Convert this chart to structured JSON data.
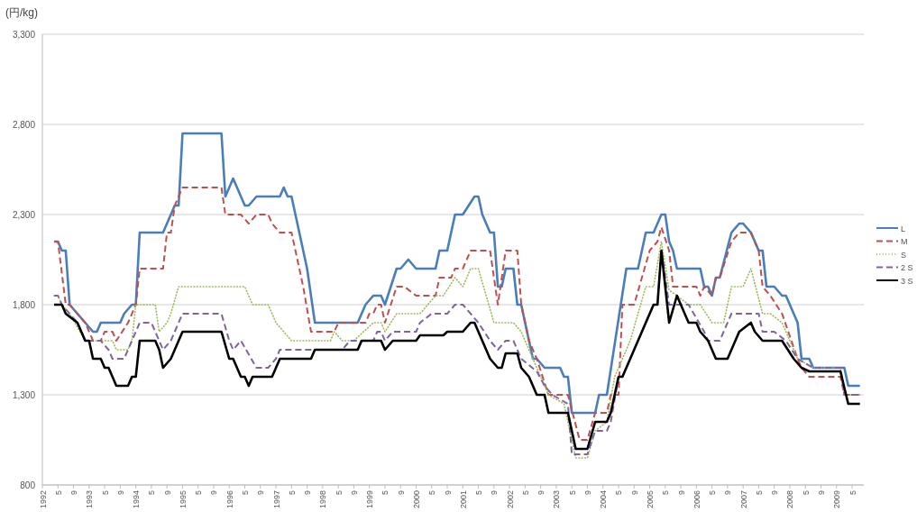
{
  "chart_data": {
    "type": "line",
    "ylabel": "(円/kg)",
    "grid": "y",
    "legend": "right",
    "marker": "none",
    "xlim": [
      "1992-01",
      "2009-08"
    ],
    "ylim": [
      800,
      3300
    ],
    "yticks": [
      {
        "value": 800,
        "label": "800"
      },
      {
        "value": 1300,
        "label": "1,300"
      },
      {
        "value": 1800,
        "label": "1,800"
      },
      {
        "value": 2300,
        "label": "2,300"
      },
      {
        "value": 2800,
        "label": "2,800"
      },
      {
        "value": 3300,
        "label": "3,300"
      }
    ],
    "xticks": [
      {
        "value": "1992-01",
        "label": "1992"
      },
      {
        "value": "1992-05",
        "label": "5"
      },
      {
        "value": "1992-09",
        "label": "9"
      },
      {
        "value": "1993-01",
        "label": "1993"
      },
      {
        "value": "1993-05",
        "label": "5"
      },
      {
        "value": "1993-09",
        "label": "9"
      },
      {
        "value": "1994-01",
        "label": "1994"
      },
      {
        "value": "1994-05",
        "label": "5"
      },
      {
        "value": "1994-09",
        "label": "9"
      },
      {
        "value": "1995-01",
        "label": "1995"
      },
      {
        "value": "1995-05",
        "label": "5"
      },
      {
        "value": "1995-09",
        "label": "9"
      },
      {
        "value": "1996-01",
        "label": "1996"
      },
      {
        "value": "1996-05",
        "label": "5"
      },
      {
        "value": "1996-09",
        "label": "9"
      },
      {
        "value": "1997-01",
        "label": "1997"
      },
      {
        "value": "1997-05",
        "label": "5"
      },
      {
        "value": "1997-09",
        "label": "9"
      },
      {
        "value": "1998-01",
        "label": "1998"
      },
      {
        "value": "1998-05",
        "label": "5"
      },
      {
        "value": "1998-09",
        "label": "9"
      },
      {
        "value": "1999-01",
        "label": "1999"
      },
      {
        "value": "1999-05",
        "label": "5"
      },
      {
        "value": "1999-09",
        "label": "9"
      },
      {
        "value": "2000-01",
        "label": "2000"
      },
      {
        "value": "2000-05",
        "label": "5"
      },
      {
        "value": "2000-09",
        "label": "9"
      },
      {
        "value": "2001-01",
        "label": "2001"
      },
      {
        "value": "2001-05",
        "label": "5"
      },
      {
        "value": "2001-09",
        "label": "9"
      },
      {
        "value": "2002-01",
        "label": "2002"
      },
      {
        "value": "2002-05",
        "label": "5"
      },
      {
        "value": "2002-09",
        "label": "9"
      },
      {
        "value": "2003-01",
        "label": "2003"
      },
      {
        "value": "2003-05",
        "label": "5"
      },
      {
        "value": "2003-09",
        "label": "9"
      },
      {
        "value": "2004-01",
        "label": "2004"
      },
      {
        "value": "2004-05",
        "label": "5"
      },
      {
        "value": "2004-09",
        "label": "9"
      },
      {
        "value": "2005-01",
        "label": "2005"
      },
      {
        "value": "2005-05",
        "label": "5"
      },
      {
        "value": "2005-09",
        "label": "9"
      },
      {
        "value": "2006-01",
        "label": "2006"
      },
      {
        "value": "2006-05",
        "label": "5"
      },
      {
        "value": "2006-09",
        "label": "9"
      },
      {
        "value": "2007-01",
        "label": "2007"
      },
      {
        "value": "2007-05",
        "label": "5"
      },
      {
        "value": "2007-09",
        "label": "9"
      },
      {
        "value": "2008-01",
        "label": "2008"
      },
      {
        "value": "2008-05",
        "label": "5"
      },
      {
        "value": "2008-09",
        "label": "9"
      },
      {
        "value": "2009-01",
        "label": "2009"
      },
      {
        "value": "2009-05",
        "label": "5"
      }
    ],
    "series": [
      {
        "name": "L",
        "color": "#4a7ebb",
        "line_style": "solid",
        "x": [
          "1992-04",
          "1992-05",
          "1992-06",
          "1992-07",
          "1992-08",
          "1992-10",
          "1992-12",
          "1993-02",
          "1993-03",
          "1993-04",
          "1993-09",
          "1993-10",
          "1993-12",
          "1994-01",
          "1994-02",
          "1994-08",
          "1994-10",
          "1994-11",
          "1994-12",
          "1995-01",
          "1995-11",
          "1995-12",
          "1996-02",
          "1996-05",
          "1996-06",
          "1996-08",
          "1997-02",
          "1997-03",
          "1997-04",
          "1997-05",
          "1997-09",
          "1997-11",
          "1998-10",
          "1998-12",
          "1999-02",
          "1999-04",
          "1999-05",
          "1999-08",
          "1999-09",
          "1999-11",
          "2000-01",
          "2000-06",
          "2000-07",
          "2000-09",
          "2000-11",
          "2001-01",
          "2001-04",
          "2001-05",
          "2001-06",
          "2001-07",
          "2001-08",
          "2001-09",
          "2001-10",
          "2001-11",
          "2001-12",
          "2002-02",
          "2002-03",
          "2002-04",
          "2002-06",
          "2002-07",
          "2002-08",
          "2002-10",
          "2003-02",
          "2003-03",
          "2003-04",
          "2003-05",
          "2003-11",
          "2003-12",
          "2004-02",
          "2004-07",
          "2004-10",
          "2004-12",
          "2005-02",
          "2005-04",
          "2005-05",
          "2005-06",
          "2005-07",
          "2005-08",
          "2006-02",
          "2006-03",
          "2006-04",
          "2006-05",
          "2006-06",
          "2006-07",
          "2006-10",
          "2006-12",
          "2007-01",
          "2007-03",
          "2007-05",
          "2007-06",
          "2007-07",
          "2007-09",
          "2007-11",
          "2007-12",
          "2008-02",
          "2008-03",
          "2008-04",
          "2008-06",
          "2008-07",
          "2009-03",
          "2009-04",
          "2009-07"
        ],
        "values": [
          2150,
          2150,
          2100,
          2100,
          1800,
          1750,
          1700,
          1650,
          1650,
          1700,
          1700,
          1750,
          1800,
          1800,
          2200,
          2200,
          2300,
          2350,
          2350,
          2750,
          2750,
          2400,
          2500,
          2350,
          2350,
          2400,
          2400,
          2450,
          2400,
          2400,
          2000,
          1700,
          1700,
          1800,
          1850,
          1850,
          1800,
          2000,
          2000,
          2050,
          2000,
          2000,
          2100,
          2100,
          2300,
          2300,
          2400,
          2400,
          2300,
          2250,
          2200,
          2200,
          1900,
          1900,
          2000,
          2000,
          1800,
          1800,
          1600,
          1500,
          1500,
          1450,
          1450,
          1400,
          1400,
          1200,
          1200,
          1300,
          1300,
          2000,
          2000,
          2200,
          2200,
          2300,
          2300,
          2150,
          2100,
          2000,
          2000,
          1900,
          1900,
          1850,
          1950,
          1950,
          2200,
          2250,
          2250,
          2200,
          2100,
          2100,
          1900,
          1900,
          1850,
          1850,
          1750,
          1700,
          1500,
          1500,
          1450,
          1450,
          1350,
          1350
        ]
      },
      {
        "name": "M",
        "color": "#c0504d",
        "line_style": "dashed",
        "x": [
          "1992-04",
          "1992-05",
          "1992-07",
          "1992-08",
          "1992-10",
          "1992-12",
          "1993-02",
          "1993-04",
          "1993-05",
          "1993-07",
          "1993-08",
          "1993-11",
          "1994-01",
          "1994-02",
          "1994-08",
          "1994-09",
          "1994-10",
          "1994-11",
          "1995-01",
          "1995-11",
          "1995-12",
          "1996-04",
          "1996-06",
          "1996-08",
          "1996-11",
          "1996-12",
          "1997-02",
          "1997-05",
          "1997-08",
          "1997-10",
          "1998-04",
          "1998-05",
          "1998-12",
          "1999-01",
          "1999-02",
          "1999-03",
          "1999-04",
          "1999-05",
          "1999-08",
          "1999-10",
          "2000-01",
          "2000-06",
          "2000-07",
          "2000-10",
          "2000-11",
          "2001-01",
          "2001-02",
          "2001-03",
          "2001-08",
          "2001-10",
          "2001-12",
          "2002-03",
          "2002-04",
          "2002-06",
          "2002-08",
          "2002-11",
          "2003-04",
          "2003-07",
          "2003-09",
          "2003-11",
          "2004-02",
          "2004-03",
          "2004-05",
          "2004-06",
          "2004-09",
          "2005-01",
          "2005-03",
          "2005-04",
          "2005-06",
          "2005-07",
          "2006-01",
          "2006-02",
          "2006-03",
          "2006-05",
          "2006-06",
          "2006-07",
          "2006-10",
          "2006-12",
          "2007-03",
          "2007-05",
          "2007-06",
          "2007-08",
          "2007-11",
          "2008-03",
          "2008-04",
          "2008-06",
          "2009-02",
          "2009-03",
          "2009-07"
        ],
        "values": [
          2150,
          2150,
          1800,
          1800,
          1750,
          1700,
          1600,
          1600,
          1650,
          1650,
          1600,
          1700,
          1800,
          2000,
          2000,
          2200,
          2200,
          2350,
          2450,
          2450,
          2300,
          2300,
          2250,
          2300,
          2300,
          2250,
          2200,
          2200,
          1900,
          1650,
          1650,
          1700,
          1700,
          1750,
          1750,
          1800,
          1800,
          1700,
          1900,
          1900,
          1850,
          1850,
          1950,
          1950,
          2000,
          2000,
          2050,
          2100,
          2100,
          1800,
          2100,
          2100,
          1800,
          1600,
          1500,
          1300,
          1300,
          1050,
          1050,
          1200,
          1200,
          1300,
          1300,
          1800,
          1800,
          2100,
          2150,
          2230,
          2100,
          1900,
          1900,
          1850,
          1900,
          1850,
          1950,
          1950,
          2150,
          2200,
          2200,
          2100,
          1900,
          1850,
          1750,
          1500,
          1450,
          1400,
          1400,
          1300,
          1300
        ]
      },
      {
        "name": "S",
        "color": "#9bbb59",
        "line_style": "dotted",
        "x": [
          "1992-04",
          "1992-05",
          "1992-06",
          "1992-08",
          "1992-12",
          "1993-07",
          "1993-08",
          "1993-11",
          "1993-12",
          "1994-01",
          "1994-06",
          "1994-07",
          "1994-09",
          "1994-10",
          "1994-12",
          "1996-05",
          "1996-07",
          "1996-11",
          "1997-01",
          "1997-03",
          "1997-05",
          "1998-03",
          "1998-04",
          "1998-06",
          "1998-09",
          "1999-02",
          "1999-04",
          "1999-05",
          "1999-08",
          "2000-02",
          "2000-06",
          "2000-08",
          "2000-11",
          "2001-01",
          "2001-03",
          "2001-05",
          "2001-07",
          "2001-09",
          "2002-02",
          "2002-04",
          "2002-08",
          "2002-09",
          "2002-11",
          "2003-03",
          "2003-06",
          "2003-09",
          "2003-11",
          "2004-02",
          "2004-04",
          "2004-08",
          "2004-12",
          "2005-02",
          "2005-04",
          "2005-06",
          "2005-08",
          "2005-11",
          "2006-02",
          "2006-05",
          "2006-08",
          "2006-10",
          "2007-01",
          "2007-03",
          "2007-06",
          "2007-08",
          "2007-11",
          "2008-03",
          "2008-07",
          "2009-02",
          "2009-03",
          "2009-07"
        ],
        "values": [
          1850,
          1850,
          1800,
          1750,
          1600,
          1600,
          1550,
          1550,
          1600,
          1800,
          1800,
          1650,
          1700,
          1750,
          1900,
          1900,
          1800,
          1800,
          1700,
          1650,
          1600,
          1600,
          1650,
          1600,
          1600,
          1700,
          1700,
          1650,
          1750,
          1750,
          1850,
          1850,
          1950,
          1900,
          2000,
          2000,
          1850,
          1700,
          1700,
          1650,
          1450,
          1400,
          1300,
          1250,
          950,
          950,
          1100,
          1150,
          1400,
          1600,
          1900,
          1900,
          2150,
          1880,
          1850,
          1800,
          1800,
          1700,
          1700,
          1900,
          1900,
          2000,
          1750,
          1750,
          1700,
          1500,
          1450,
          1450,
          1300,
          1300
        ]
      },
      {
        "name": "2 S",
        "color": "#8064a2",
        "line_style": "dashed",
        "x": [
          "1992-04",
          "1992-05",
          "1992-06",
          "1992-08",
          "1992-10",
          "1992-12",
          "1993-04",
          "1993-06",
          "1993-07",
          "1993-10",
          "1993-12",
          "1994-02",
          "1994-05",
          "1994-06",
          "1994-08",
          "1994-10",
          "1994-11",
          "1995-01",
          "1995-11",
          "1996-01",
          "1996-02",
          "1996-04",
          "1996-08",
          "1996-11",
          "1997-01",
          "1997-02",
          "1998-06",
          "1998-08",
          "1999-02",
          "1999-03",
          "1999-04",
          "1999-05",
          "1999-07",
          "2000-01",
          "2000-02",
          "2000-05",
          "2000-09",
          "2000-11",
          "2001-01",
          "2001-03",
          "2001-05",
          "2001-08",
          "2001-10",
          "2001-12",
          "2002-02",
          "2002-03",
          "2002-04",
          "2002-08",
          "2002-10",
          "2002-12",
          "2003-04",
          "2003-05",
          "2003-09",
          "2003-11",
          "2004-02",
          "2004-03",
          "2004-05",
          "2004-06",
          "2004-10",
          "2004-12",
          "2005-02",
          "2005-03",
          "2005-04",
          "2005-06",
          "2005-11",
          "2006-03",
          "2006-04",
          "2006-07",
          "2006-08",
          "2006-10",
          "2007-05",
          "2007-06",
          "2007-09",
          "2007-12",
          "2008-03",
          "2008-07",
          "2009-02",
          "2009-03",
          "2009-07"
        ],
        "values": [
          1850,
          1850,
          1800,
          1750,
          1700,
          1600,
          1600,
          1550,
          1500,
          1500,
          1600,
          1700,
          1700,
          1650,
          1550,
          1600,
          1650,
          1750,
          1750,
          1600,
          1550,
          1600,
          1450,
          1450,
          1500,
          1550,
          1550,
          1600,
          1600,
          1650,
          1650,
          1600,
          1650,
          1650,
          1700,
          1750,
          1750,
          1800,
          1800,
          1750,
          1700,
          1600,
          1550,
          1600,
          1600,
          1550,
          1500,
          1430,
          1350,
          1300,
          1250,
          970,
          970,
          1100,
          1100,
          1150,
          1400,
          1400,
          1600,
          1700,
          1800,
          1800,
          2100,
          1800,
          1800,
          1650,
          1600,
          1600,
          1650,
          1750,
          1750,
          1650,
          1650,
          1600,
          1500,
          1450,
          1450,
          1300,
          1300
        ]
      },
      {
        "name": "3 S",
        "color": "#000000",
        "line_style": "solid",
        "x": [
          "1992-04",
          "1992-06",
          "1992-07",
          "1992-10",
          "1992-12",
          "1993-01",
          "1993-02",
          "1993-04",
          "1993-05",
          "1993-06",
          "1993-08",
          "1993-11",
          "1993-12",
          "1994-01",
          "1994-02",
          "1994-06",
          "1994-07",
          "1994-08",
          "1994-10",
          "1994-11",
          "1995-01",
          "1995-11",
          "1996-01",
          "1996-02",
          "1996-04",
          "1996-05",
          "1996-06",
          "1996-07",
          "1996-12",
          "1997-01",
          "1997-02",
          "1997-10",
          "1997-11",
          "1998-10",
          "1998-11",
          "1999-04",
          "1999-05",
          "1999-07",
          "2000-01",
          "2000-02",
          "2000-08",
          "2000-09",
          "2001-01",
          "2001-03",
          "2001-04",
          "2001-06",
          "2001-08",
          "2001-10",
          "2001-11",
          "2001-12",
          "2002-03",
          "2002-04",
          "2002-06",
          "2002-07",
          "2002-08",
          "2002-10",
          "2002-11",
          "2003-04",
          "2003-06",
          "2003-09",
          "2003-11",
          "2004-02",
          "2004-03",
          "2004-05",
          "2004-06",
          "2004-10",
          "2004-12",
          "2005-02",
          "2005-03",
          "2005-04",
          "2005-06",
          "2005-08",
          "2005-11",
          "2006-01",
          "2006-02",
          "2006-04",
          "2006-06",
          "2006-09",
          "2006-10",
          "2006-12",
          "2007-03",
          "2007-04",
          "2007-06",
          "2007-11",
          "2008-02",
          "2008-04",
          "2008-06",
          "2009-02",
          "2009-04",
          "2009-07"
        ],
        "values": [
          1800,
          1800,
          1750,
          1700,
          1600,
          1600,
          1500,
          1500,
          1450,
          1450,
          1350,
          1350,
          1400,
          1400,
          1600,
          1600,
          1550,
          1450,
          1500,
          1550,
          1650,
          1650,
          1500,
          1500,
          1400,
          1400,
          1350,
          1400,
          1400,
          1450,
          1500,
          1500,
          1550,
          1550,
          1600,
          1600,
          1550,
          1600,
          1600,
          1630,
          1630,
          1650,
          1650,
          1700,
          1700,
          1600,
          1500,
          1450,
          1450,
          1530,
          1530,
          1450,
          1400,
          1350,
          1300,
          1300,
          1200,
          1200,
          1000,
          1000,
          1150,
          1150,
          1200,
          1400,
          1400,
          1600,
          1700,
          1800,
          1800,
          2100,
          1700,
          1850,
          1700,
          1700,
          1650,
          1600,
          1500,
          1500,
          1550,
          1650,
          1700,
          1650,
          1600,
          1600,
          1500,
          1450,
          1430,
          1430,
          1250,
          1250
        ]
      }
    ]
  }
}
